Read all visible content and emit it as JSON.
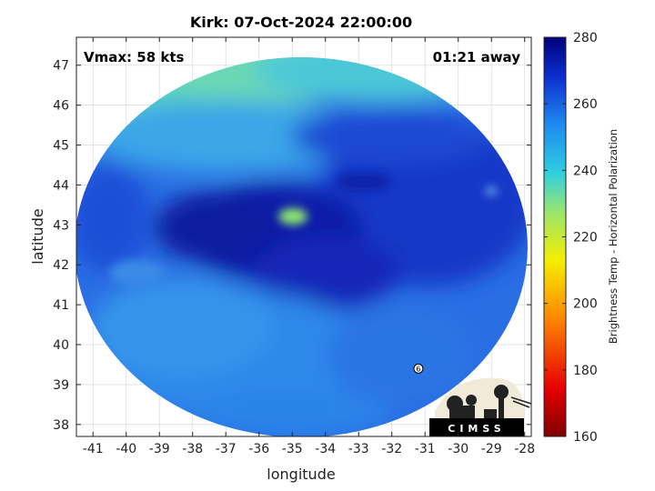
{
  "chart_data": {
    "type": "heatmap",
    "title": "Kirk: 07-Oct-2024 22:00:00",
    "xlabel": "longitude",
    "ylabel": "latitude",
    "xlim": [
      -41.5,
      -27.8
    ],
    "ylim": [
      37.7,
      47.7
    ],
    "xticks": [
      -41,
      -40,
      -39,
      -38,
      -37,
      -36,
      -35,
      -34,
      -33,
      -32,
      -31,
      -30,
      -29,
      -28
    ],
    "yticks": [
      38,
      39,
      40,
      41,
      42,
      43,
      44,
      45,
      46,
      47
    ],
    "grid": true,
    "annotations": {
      "top_left": "Vmax: 58 kts",
      "top_right": "01:21 away"
    },
    "storm_marker_label": "6",
    "storm_marker": {
      "lon": -31.2,
      "lat": 39.4
    },
    "colorbar": {
      "label": "Brightness Temp - Horizontal Polarization",
      "range": [
        160,
        280
      ],
      "ticks": [
        160,
        180,
        200,
        220,
        240,
        260,
        280
      ]
    },
    "scan_center": {
      "lon": -34.6,
      "lat": 42.6
    },
    "colors": {
      "cold": "#0a0a7a",
      "deep_blue": "#1530c8",
      "mid_blue": "#2a70e6",
      "cyan": "#30bce8",
      "green_cyan": "#48d8b0",
      "yellow_green": "#9ee868"
    }
  },
  "logo": {
    "text": "CIMSS"
  }
}
